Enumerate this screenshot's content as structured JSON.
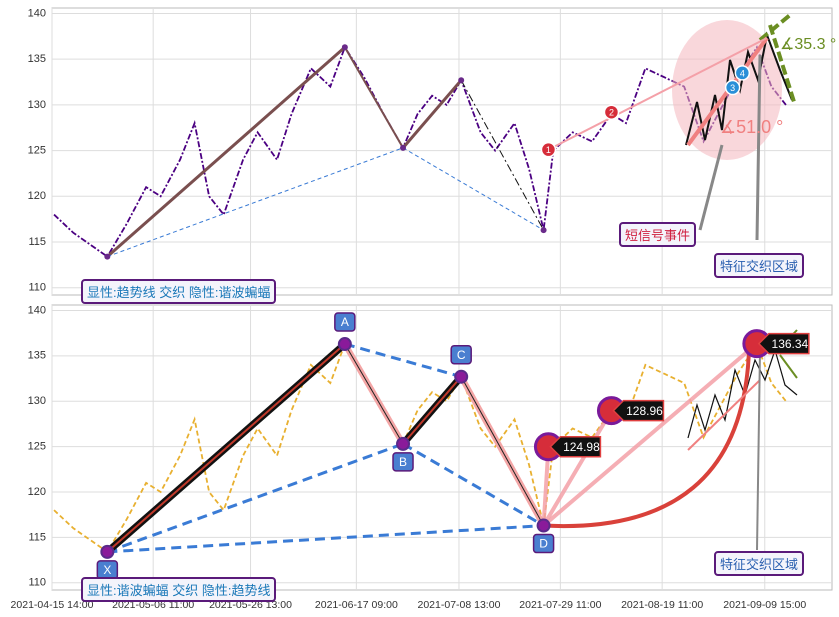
{
  "chart_data": [
    {
      "type": "line",
      "x": [
        "2021-04-16",
        "2021-04-20",
        "2021-04-27",
        "2021-05-01",
        "2021-05-05",
        "2021-05-08",
        "2021-05-12",
        "2021-05-15",
        "2021-05-18",
        "2021-05-21",
        "2021-05-25",
        "2021-05-28",
        "2021-06-01",
        "2021-06-04",
        "2021-06-08",
        "2021-06-12",
        "2021-06-15",
        "2021-06-19",
        "2021-06-23",
        "2021-06-27",
        "2021-06-30",
        "2021-07-03",
        "2021-07-06",
        "2021-07-09",
        "2021-07-13",
        "2021-07-16",
        "2021-07-20",
        "2021-07-23",
        "2021-07-26",
        "2021-07-28",
        "2021-08-01",
        "2021-08-05",
        "2021-08-09",
        "2021-08-12",
        "2021-08-16",
        "2021-08-20",
        "2021-08-24",
        "2021-08-28",
        "2021-09-01",
        "2021-09-04",
        "2021-09-08",
        "2021-09-11",
        "2021-09-14"
      ],
      "series": [
        {
          "color": "#4b0082",
          "values": [
            118,
            116,
            113.4,
            117,
            121,
            120,
            124,
            128,
            120,
            118,
            124,
            127,
            124,
            129,
            134,
            132,
            136.3,
            133,
            129,
            125.3,
            129,
            131,
            130,
            132.7,
            127,
            125,
            128,
            123,
            116.3,
            125,
            127,
            126,
            129,
            128,
            134,
            133,
            132,
            126,
            130,
            133,
            136.3,
            132,
            130
          ]
        }
      ],
      "pattern": {
        "x": [
          "2021-04-27",
          "2021-06-15",
          "2021-06-27",
          "2021-07-09",
          "2021-07-26"
        ],
        "values": [
          113.4,
          136.3,
          125.3,
          132.7,
          116.3
        ]
      },
      "signals": {
        "x": [
          "2021-07-27",
          "2021-08-09",
          "2021-09-03",
          "2021-09-05"
        ],
        "values": [
          125.1,
          129.2,
          131.9,
          133.5
        ],
        "labels": [
          "1",
          "2",
          "3",
          "4"
        ]
      },
      "annotations": [
        "显性:趋势线 交织 隐性:谐波蝙蝠",
        "短信号事件",
        "特征交织区域",
        "∡51.0 °",
        "∡35.3 °"
      ],
      "ylim": [
        109.2,
        140.6
      ],
      "yticks": [
        110,
        115,
        120,
        125,
        130,
        135,
        140
      ],
      "grid": true
    },
    {
      "type": "line",
      "x": [
        "2021-04-16",
        "2021-04-20",
        "2021-04-27",
        "2021-05-01",
        "2021-05-05",
        "2021-05-08",
        "2021-05-12",
        "2021-05-15",
        "2021-05-18",
        "2021-05-21",
        "2021-05-25",
        "2021-05-28",
        "2021-06-01",
        "2021-06-04",
        "2021-06-08",
        "2021-06-12",
        "2021-06-15",
        "2021-06-19",
        "2021-06-23",
        "2021-06-27",
        "2021-06-30",
        "2021-07-03",
        "2021-07-06",
        "2021-07-09",
        "2021-07-13",
        "2021-07-16",
        "2021-07-20",
        "2021-07-23",
        "2021-07-26",
        "2021-07-28",
        "2021-08-01",
        "2021-08-05",
        "2021-08-09",
        "2021-08-12",
        "2021-08-16",
        "2021-08-20",
        "2021-08-24",
        "2021-08-28",
        "2021-09-01",
        "2021-09-04",
        "2021-09-08",
        "2021-09-11",
        "2021-09-14"
      ],
      "series": [
        {
          "color": "#e8b030",
          "values": [
            118,
            116,
            113.4,
            117,
            121,
            120,
            124,
            128,
            120,
            118,
            124,
            127,
            124,
            129,
            134,
            132,
            136.3,
            133,
            129,
            125.3,
            129,
            131,
            130,
            132.7,
            127,
            125,
            128,
            123,
            116.3,
            125,
            127,
            126,
            129,
            128,
            134,
            133,
            132,
            126,
            130,
            133,
            136.3,
            132,
            130
          ]
        }
      ],
      "pattern": {
        "x": [
          "2021-04-27",
          "2021-06-15",
          "2021-06-27",
          "2021-07-09",
          "2021-07-26"
        ],
        "values": [
          113.4,
          136.3,
          125.3,
          132.7,
          116.3
        ],
        "labels": [
          "X",
          "A",
          "B",
          "C",
          "D"
        ]
      },
      "signals": {
        "x": [
          "2021-07-27",
          "2021-08-09",
          "2021-09-08"
        ],
        "values": [
          124.98,
          128.96,
          136.34
        ]
      },
      "annotations": [
        "显性:谐波蝙蝠 交织 隐性:趋势线",
        "特征交织区域"
      ],
      "ylim": [
        109.2,
        140.6
      ],
      "yticks": [
        110,
        115,
        120,
        125,
        130,
        135,
        140
      ],
      "grid": true,
      "xlim": [
        "2021-04-15 14:00",
        "2021-09-23 12:00"
      ],
      "xticks": [
        "2021-04-15 14:00",
        "2021-05-06 11:00",
        "2021-05-26 13:00",
        "2021-06-17 09:00",
        "2021-07-08 13:00",
        "2021-07-29 11:00",
        "2021-08-19 11:00",
        "2021-09-09 15:00"
      ]
    }
  ]
}
